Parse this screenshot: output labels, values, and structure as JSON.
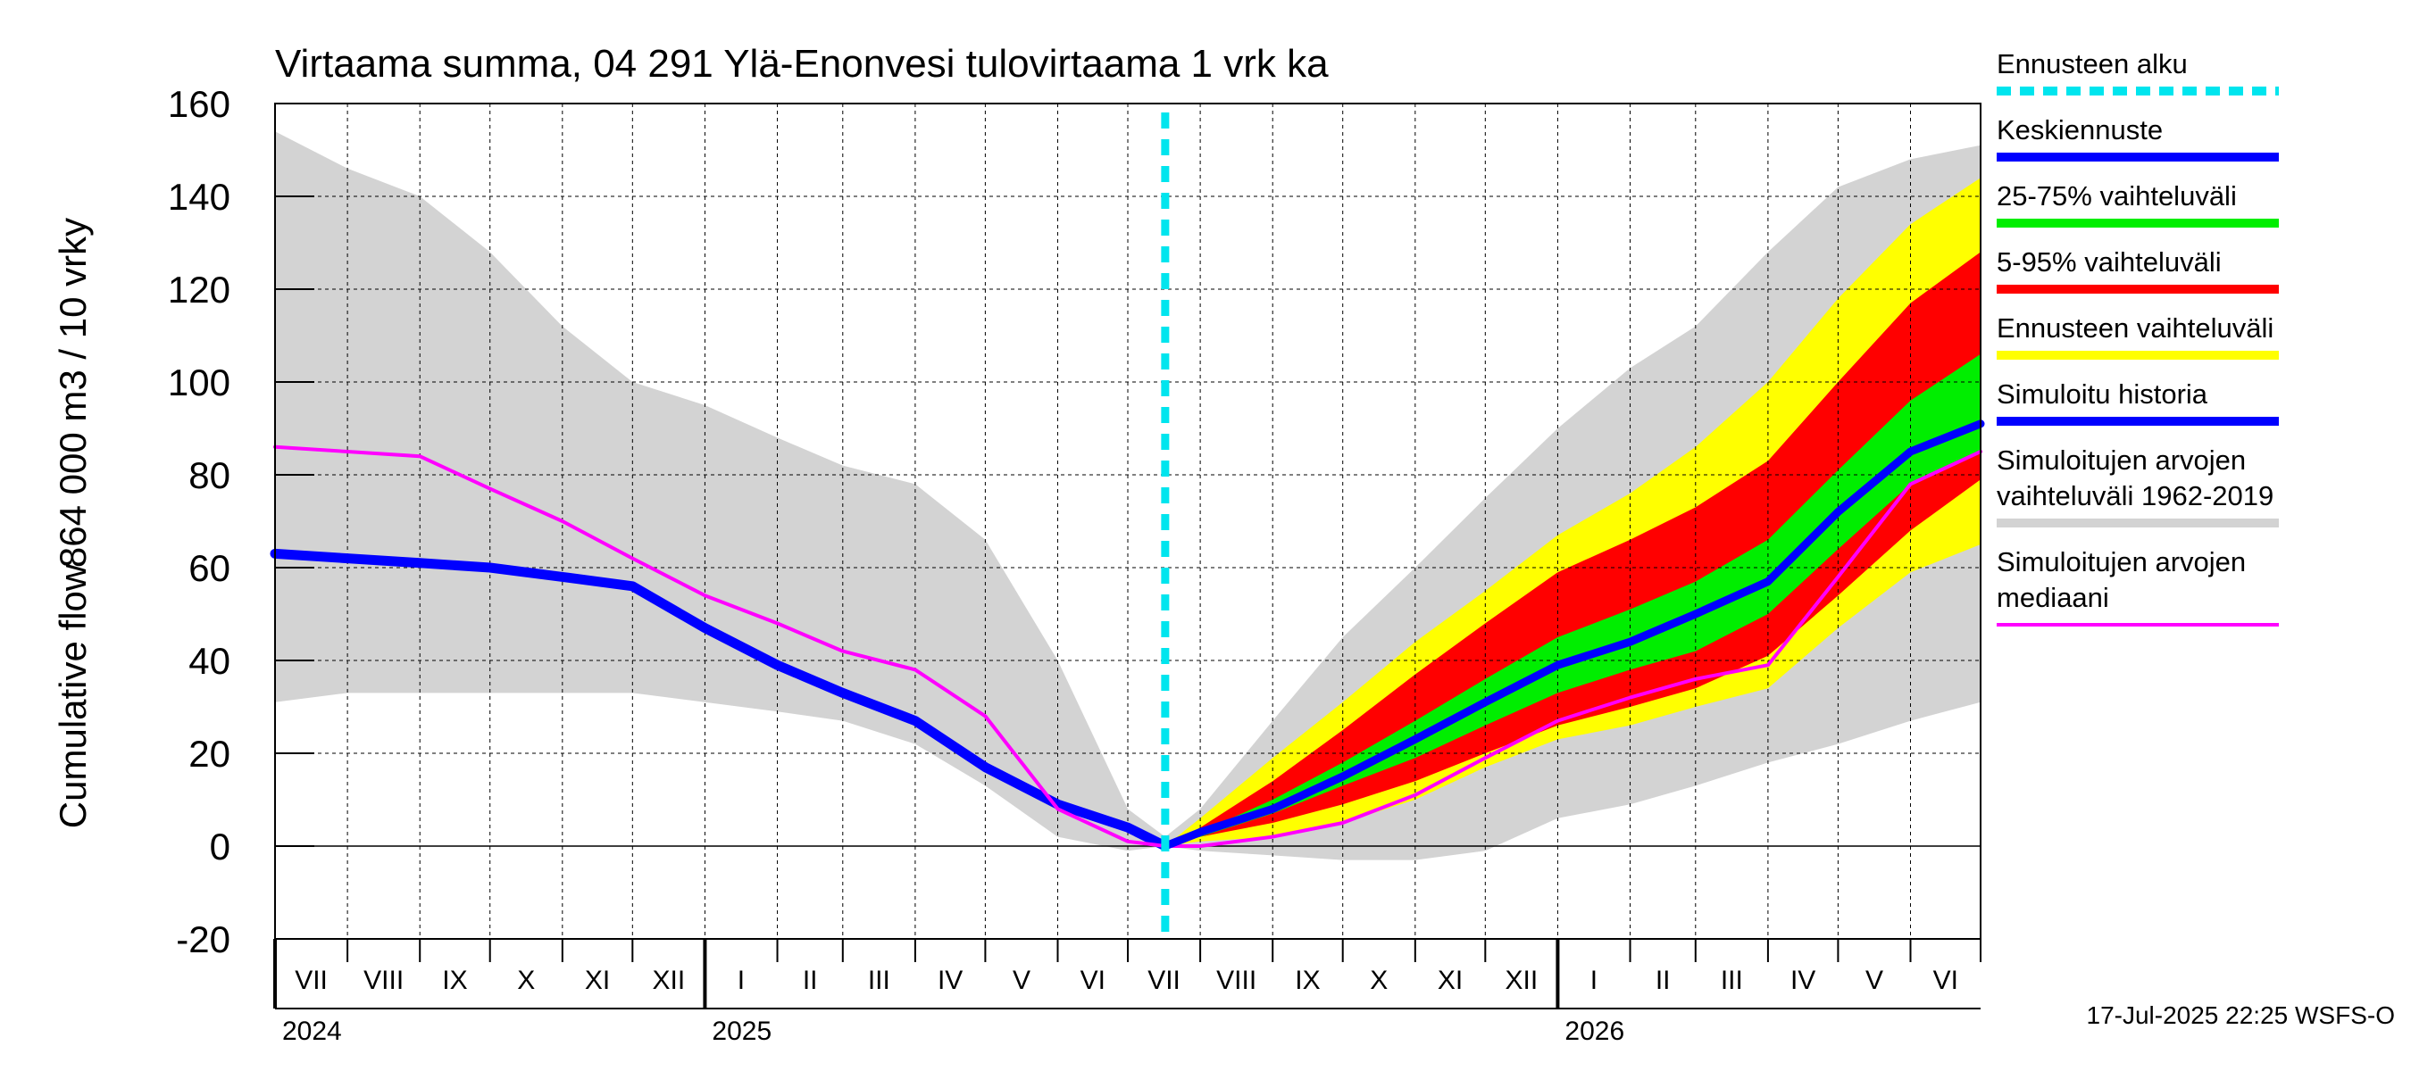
{
  "chart_data": {
    "type": "area",
    "title": "Virtaama summa, 04 291 Ylä-Enonvesi tulovirtaama 1 vrk ka",
    "ylabel_line1": "Cumulative flow",
    "ylabel_line2": "864 000 m3 / 10 vrky",
    "ylim": [
      -20,
      160
    ],
    "yticks": [
      -20,
      0,
      20,
      40,
      60,
      80,
      100,
      120,
      140,
      160
    ],
    "xlim": [
      "2024-07-01",
      "2026-07-01"
    ],
    "months": [
      "VII",
      "VIII",
      "IX",
      "X",
      "XI",
      "XII",
      "I",
      "II",
      "III",
      "IV",
      "V",
      "VI",
      "VII",
      "VIII",
      "IX",
      "X",
      "XI",
      "XII",
      "I",
      "II",
      "III",
      "IV",
      "V",
      "VI"
    ],
    "years": [
      {
        "label": "2024",
        "date": "2024-07-01"
      },
      {
        "label": "2025",
        "date": "2025-01-01"
      },
      {
        "label": "2026",
        "date": "2026-01-01"
      }
    ],
    "forecast_start": "2025-07-17",
    "grid": true,
    "legend_position": "right",
    "timestamp": "17-Jul-2025 22:25 WSFS-O",
    "colors": {
      "historical_range": "#d3d3d3",
      "forecast_range": "#ffff00",
      "range_5_95": "#ff0000",
      "range_25_75": "#00ee00",
      "mean_forecast": "#0000ff",
      "simulated_history": "#0000ff",
      "median": "#ff00ff",
      "forecast_start": "#00e5ee"
    },
    "legend": [
      {
        "key": "forecast_start",
        "lines": [
          "Ennusteen alku"
        ],
        "style": "dashed"
      },
      {
        "key": "mean_forecast",
        "lines": [
          "Keskiennuste"
        ],
        "style": "line"
      },
      {
        "key": "range_25_75",
        "lines": [
          "25-75% vaihteluväli"
        ],
        "style": "line"
      },
      {
        "key": "range_5_95",
        "lines": [
          "5-95% vaihteluväli"
        ],
        "style": "line"
      },
      {
        "key": "forecast_range",
        "lines": [
          "Ennusteen vaihteluväli"
        ],
        "style": "line"
      },
      {
        "key": "simulated_history",
        "lines": [
          "Simuloitu historia"
        ],
        "style": "line"
      },
      {
        "key": "historical_range",
        "lines": [
          "Simuloitujen arvojen",
          "vaihteluväli 1962-2019"
        ],
        "style": "line"
      },
      {
        "key": "median",
        "lines": [
          "Simuloitujen arvojen",
          "mediaani"
        ],
        "style": "thin"
      }
    ],
    "series": {
      "historical_upper": [
        [
          "2024-07-01",
          154
        ],
        [
          "2024-08-01",
          146
        ],
        [
          "2024-09-01",
          140
        ],
        [
          "2024-10-01",
          128
        ],
        [
          "2024-11-01",
          112
        ],
        [
          "2024-12-01",
          100
        ],
        [
          "2025-01-01",
          95
        ],
        [
          "2025-02-01",
          88
        ],
        [
          "2025-03-01",
          82
        ],
        [
          "2025-04-01",
          78
        ],
        [
          "2025-05-01",
          66
        ],
        [
          "2025-06-01",
          40
        ],
        [
          "2025-07-01",
          8
        ],
        [
          "2025-07-17",
          2
        ],
        [
          "2025-08-01",
          8
        ],
        [
          "2025-09-01",
          27
        ],
        [
          "2025-10-01",
          45
        ],
        [
          "2025-11-01",
          60
        ],
        [
          "2025-12-01",
          75
        ],
        [
          "2026-01-01",
          90
        ],
        [
          "2026-02-01",
          103
        ],
        [
          "2026-03-01",
          112
        ],
        [
          "2026-04-01",
          128
        ],
        [
          "2026-05-01",
          142
        ],
        [
          "2026-06-01",
          148
        ],
        [
          "2026-07-01",
          151
        ]
      ],
      "historical_lower": [
        [
          "2024-07-01",
          31
        ],
        [
          "2024-08-01",
          33
        ],
        [
          "2024-09-01",
          33
        ],
        [
          "2024-10-01",
          33
        ],
        [
          "2024-11-01",
          33
        ],
        [
          "2024-12-01",
          33
        ],
        [
          "2025-01-01",
          31
        ],
        [
          "2025-02-01",
          29
        ],
        [
          "2025-03-01",
          27
        ],
        [
          "2025-04-01",
          22
        ],
        [
          "2025-05-01",
          13
        ],
        [
          "2025-06-01",
          2
        ],
        [
          "2025-07-01",
          -1
        ],
        [
          "2025-07-17",
          0
        ],
        [
          "2025-08-01",
          -1
        ],
        [
          "2025-09-01",
          -2
        ],
        [
          "2025-10-01",
          -3
        ],
        [
          "2025-11-01",
          -3
        ],
        [
          "2025-12-01",
          -1
        ],
        [
          "2026-01-01",
          6
        ],
        [
          "2026-02-01",
          9
        ],
        [
          "2026-03-01",
          13
        ],
        [
          "2026-04-01",
          18
        ],
        [
          "2026-05-01",
          22
        ],
        [
          "2026-06-01",
          27
        ],
        [
          "2026-07-01",
          31
        ]
      ],
      "forecast_upper": [
        [
          "2025-07-17",
          0
        ],
        [
          "2025-08-01",
          6
        ],
        [
          "2025-09-01",
          19
        ],
        [
          "2025-10-01",
          31
        ],
        [
          "2025-11-01",
          44
        ],
        [
          "2025-12-01",
          55
        ],
        [
          "2026-01-01",
          67
        ],
        [
          "2026-02-01",
          76
        ],
        [
          "2026-03-01",
          86
        ],
        [
          "2026-04-01",
          100
        ],
        [
          "2026-05-01",
          118
        ],
        [
          "2026-06-01",
          134
        ],
        [
          "2026-07-01",
          144
        ]
      ],
      "forecast_lower": [
        [
          "2025-07-17",
          0
        ],
        [
          "2025-08-01",
          1
        ],
        [
          "2025-09-01",
          2
        ],
        [
          "2025-10-01",
          5
        ],
        [
          "2025-11-01",
          10
        ],
        [
          "2025-12-01",
          17
        ],
        [
          "2026-01-01",
          23
        ],
        [
          "2026-02-01",
          26
        ],
        [
          "2026-03-01",
          30
        ],
        [
          "2026-04-01",
          34
        ],
        [
          "2026-05-01",
          47
        ],
        [
          "2026-06-01",
          59
        ],
        [
          "2026-07-01",
          65
        ]
      ],
      "p95": [
        [
          "2025-07-17",
          0
        ],
        [
          "2025-08-01",
          4
        ],
        [
          "2025-09-01",
          14
        ],
        [
          "2025-10-01",
          25
        ],
        [
          "2025-11-01",
          37
        ],
        [
          "2025-12-01",
          48
        ],
        [
          "2026-01-01",
          59
        ],
        [
          "2026-02-01",
          66
        ],
        [
          "2026-03-01",
          73
        ],
        [
          "2026-04-01",
          83
        ],
        [
          "2026-05-01",
          100
        ],
        [
          "2026-06-01",
          117
        ],
        [
          "2026-07-01",
          128
        ]
      ],
      "p5": [
        [
          "2025-07-17",
          0
        ],
        [
          "2025-08-01",
          2
        ],
        [
          "2025-09-01",
          5
        ],
        [
          "2025-10-01",
          9
        ],
        [
          "2025-11-01",
          14
        ],
        [
          "2025-12-01",
          20
        ],
        [
          "2026-01-01",
          26
        ],
        [
          "2026-02-01",
          30
        ],
        [
          "2026-03-01",
          34
        ],
        [
          "2026-04-01",
          41
        ],
        [
          "2026-05-01",
          54
        ],
        [
          "2026-06-01",
          68
        ],
        [
          "2026-07-01",
          79
        ]
      ],
      "p75": [
        [
          "2025-07-17",
          0
        ],
        [
          "2025-08-01",
          3
        ],
        [
          "2025-09-01",
          10
        ],
        [
          "2025-10-01",
          18
        ],
        [
          "2025-11-01",
          27
        ],
        [
          "2025-12-01",
          36
        ],
        [
          "2026-01-01",
          45
        ],
        [
          "2026-02-01",
          51
        ],
        [
          "2026-03-01",
          57
        ],
        [
          "2026-04-01",
          66
        ],
        [
          "2026-05-01",
          81
        ],
        [
          "2026-06-01",
          96
        ],
        [
          "2026-07-01",
          106
        ]
      ],
      "p25": [
        [
          "2025-07-17",
          0
        ],
        [
          "2025-08-01",
          2
        ],
        [
          "2025-09-01",
          7
        ],
        [
          "2025-10-01",
          13
        ],
        [
          "2025-11-01",
          19
        ],
        [
          "2025-12-01",
          26
        ],
        [
          "2026-01-01",
          33
        ],
        [
          "2026-02-01",
          38
        ],
        [
          "2026-03-01",
          42
        ],
        [
          "2026-04-01",
          50
        ],
        [
          "2026-05-01",
          64
        ],
        [
          "2026-06-01",
          78
        ],
        [
          "2026-07-01",
          85
        ]
      ],
      "mean_forecast": [
        [
          "2025-07-17",
          0
        ],
        [
          "2025-08-01",
          3
        ],
        [
          "2025-09-01",
          8
        ],
        [
          "2025-10-01",
          15
        ],
        [
          "2025-11-01",
          23
        ],
        [
          "2025-12-01",
          31
        ],
        [
          "2026-01-01",
          39
        ],
        [
          "2026-02-01",
          44
        ],
        [
          "2026-03-01",
          50
        ],
        [
          "2026-04-01",
          57
        ],
        [
          "2026-05-01",
          72
        ],
        [
          "2026-06-01",
          85
        ],
        [
          "2026-07-01",
          91
        ]
      ],
      "simulated_history": [
        [
          "2024-07-01",
          63
        ],
        [
          "2024-08-01",
          62
        ],
        [
          "2024-09-01",
          61
        ],
        [
          "2024-10-01",
          60
        ],
        [
          "2024-11-01",
          58
        ],
        [
          "2024-12-01",
          56
        ],
        [
          "2025-01-01",
          47
        ],
        [
          "2025-02-01",
          39
        ],
        [
          "2025-03-01",
          33
        ],
        [
          "2025-04-01",
          27
        ],
        [
          "2025-05-01",
          17
        ],
        [
          "2025-06-01",
          9
        ],
        [
          "2025-07-01",
          4
        ],
        [
          "2025-07-17",
          0
        ]
      ],
      "median": [
        [
          "2024-07-01",
          86
        ],
        [
          "2024-08-01",
          85
        ],
        [
          "2024-09-01",
          84
        ],
        [
          "2024-10-01",
          77
        ],
        [
          "2024-11-01",
          70
        ],
        [
          "2024-12-01",
          62
        ],
        [
          "2025-01-01",
          54
        ],
        [
          "2025-02-01",
          48
        ],
        [
          "2025-03-01",
          42
        ],
        [
          "2025-04-01",
          38
        ],
        [
          "2025-05-01",
          28
        ],
        [
          "2025-06-01",
          8
        ],
        [
          "2025-07-01",
          1
        ],
        [
          "2025-07-17",
          0
        ],
        [
          "2025-08-01",
          0
        ],
        [
          "2025-09-01",
          2
        ],
        [
          "2025-10-01",
          5
        ],
        [
          "2025-11-01",
          11
        ],
        [
          "2025-12-01",
          19
        ],
        [
          "2026-01-01",
          27
        ],
        [
          "2026-02-01",
          32
        ],
        [
          "2026-03-01",
          36
        ],
        [
          "2026-04-01",
          39
        ],
        [
          "2026-05-01",
          58
        ],
        [
          "2026-06-01",
          78
        ],
        [
          "2026-07-01",
          85
        ]
      ]
    }
  }
}
